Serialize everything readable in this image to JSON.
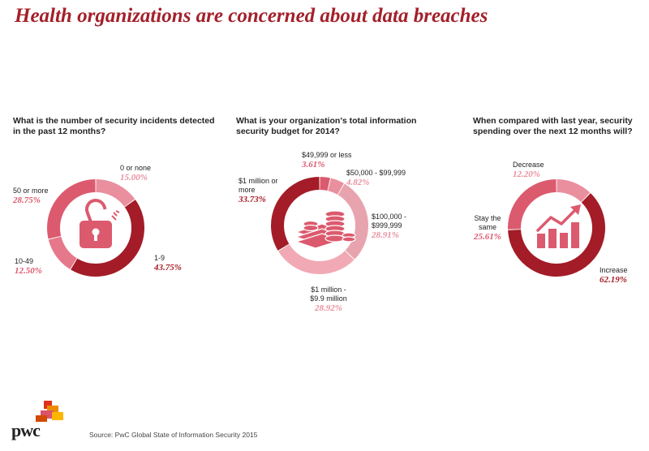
{
  "title": "Health organizations are concerned about data breaches",
  "source": "Source:  PwC Global State of Information Security 2015",
  "logo": {
    "text": "pwc"
  },
  "colors": {
    "dark_red": "#a31c27",
    "medium_red": "#dc5a6e",
    "pink": "#e98f9e",
    "light_pink": "#f1aab5",
    "title_red": "#a3202a"
  },
  "chart_data": [
    {
      "type": "donut",
      "title": "What is the number of security incidents detected in the past 12 months?",
      "icon": "padlock-icon",
      "slices": [
        {
          "label": "0 or none",
          "value": 15.0,
          "value_label": "15.00%",
          "color": "#e98f9e"
        },
        {
          "label": "1-9",
          "value": 43.75,
          "value_label": "43.75%",
          "color": "#a31c27"
        },
        {
          "label": "10-49",
          "value": 12.5,
          "value_label": "12.50%",
          "color": "#e5788a"
        },
        {
          "label": "50 or more",
          "value": 28.75,
          "value_label": "28.75%",
          "color": "#dc5a6e"
        }
      ]
    },
    {
      "type": "donut",
      "title": "What is your organization's total information security budget for 2014?",
      "icon": "coins-icon",
      "slices": [
        {
          "label": "$49,999 or less",
          "value": 3.61,
          "value_label": "3.61%",
          "color": "#dc5a6e"
        },
        {
          "label": "$50,000 - $99,999",
          "value": 4.82,
          "value_label": "4.82%",
          "color": "#e98f9e"
        },
        {
          "label": "$100,000 - $999,999",
          "value": 28.91,
          "value_label": "28.91%",
          "color": "#e8a4ae"
        },
        {
          "label": "$1 million - $9.9 million",
          "value": 28.92,
          "value_label": "28.92%",
          "color": "#f1aab5"
        },
        {
          "label": "$1 million or more",
          "value": 33.73,
          "value_label": "33.73%",
          "color": "#a31c27"
        }
      ]
    },
    {
      "type": "donut",
      "title": "When compared with last year, security spending over the next 12 months will?",
      "icon": "bar-chart-trend-icon",
      "slices": [
        {
          "label": "Decrease",
          "value": 12.2,
          "value_label": "12.20%",
          "color": "#e98f9e"
        },
        {
          "label": "Increase",
          "value": 62.19,
          "value_label": "62.19%",
          "color": "#a31c27"
        },
        {
          "label": "Stay the same",
          "value": 25.61,
          "value_label": "25.61%",
          "color": "#dc5a6e"
        }
      ]
    }
  ]
}
